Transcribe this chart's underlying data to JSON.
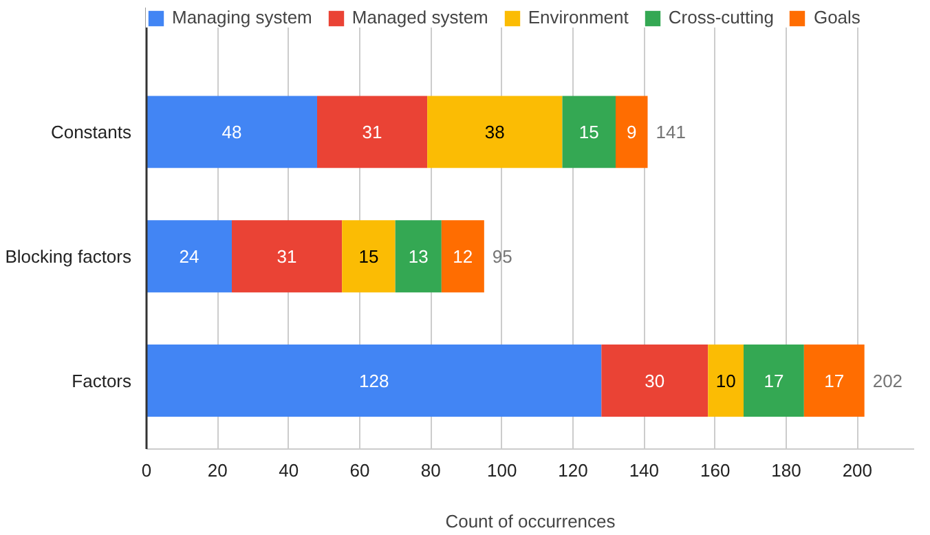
{
  "chart_data": {
    "type": "bar",
    "orientation": "horizontal",
    "stacked": true,
    "categories": [
      "Constants",
      "Blocking factors",
      "Factors"
    ],
    "series": [
      {
        "name": "Managing system",
        "color": "#4285f4",
        "values": [
          48,
          24,
          128
        ]
      },
      {
        "name": "Managed system",
        "color": "#ea4335",
        "values": [
          31,
          31,
          30
        ]
      },
      {
        "name": "Environment",
        "color": "#fbbc04",
        "values": [
          38,
          15,
          10
        ]
      },
      {
        "name": "Cross-cutting",
        "color": "#34a853",
        "values": [
          15,
          13,
          17
        ]
      },
      {
        "name": "Goals",
        "color": "#ff6d01",
        "values": [
          9,
          12,
          17
        ]
      }
    ],
    "totals": [
      "141",
      "95",
      "202"
    ],
    "data_labels": true,
    "xlabel": "Count of occurrences",
    "xlim": [
      0,
      216
    ],
    "xticks": [
      0,
      20,
      40,
      60,
      80,
      100,
      120,
      140,
      160,
      180,
      200
    ],
    "grid": "x",
    "legend": "top"
  }
}
